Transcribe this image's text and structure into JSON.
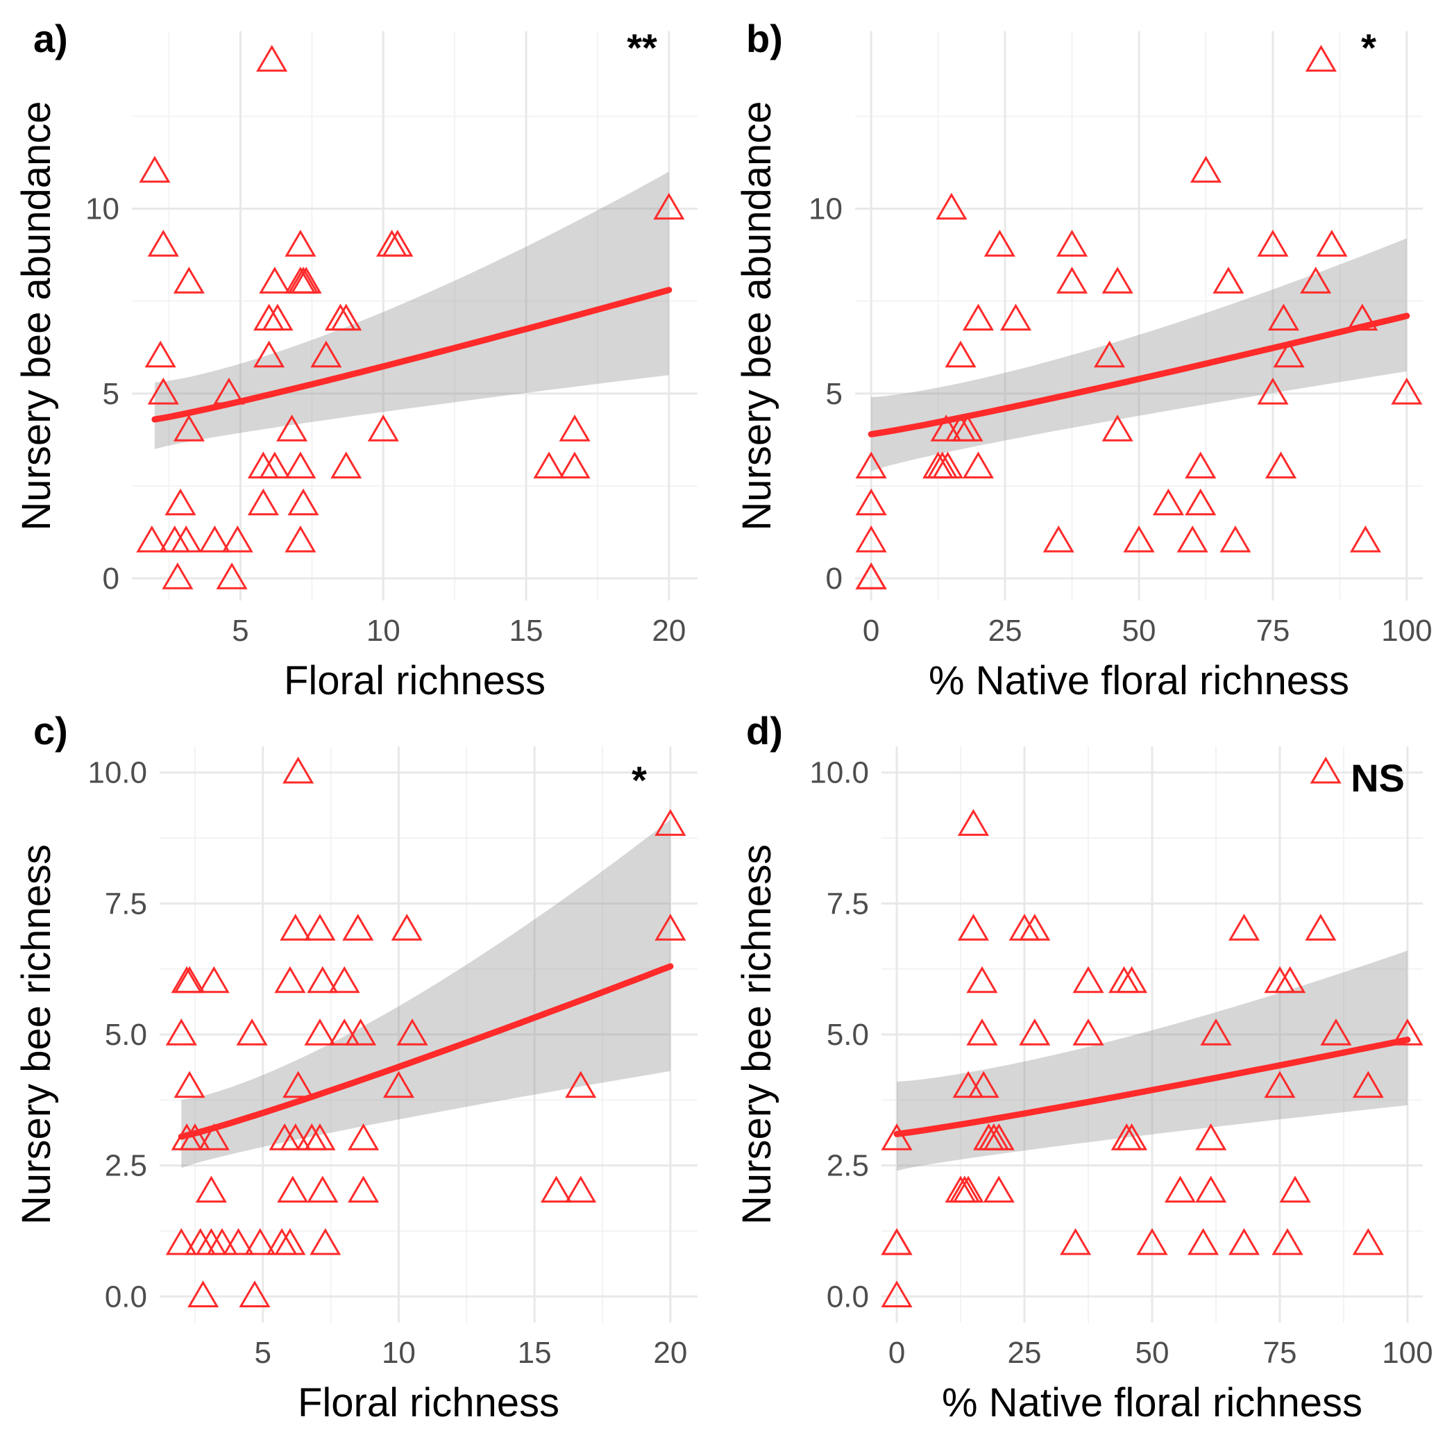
{
  "colors": {
    "points": "#ff2a2a",
    "fit": "#ff2a2a",
    "ribbon": "#999999",
    "grid": "#e8e8e8"
  },
  "chart_data": [
    {
      "panel": "a)",
      "type": "scatter",
      "significance": "**",
      "xlabel": "Floral richness",
      "ylabel": "Nursery bee abundance",
      "xlim": [
        1.2,
        21
      ],
      "ylim": [
        -0.6,
        14.8
      ],
      "xticks": [
        5,
        10,
        15,
        20
      ],
      "xtick_labels": [
        "5",
        "10",
        "15",
        "20"
      ],
      "yticks": [
        0,
        5,
        10
      ],
      "ytick_labels": [
        "0",
        "5",
        "10"
      ],
      "points": [
        [
          2,
          11
        ],
        [
          2.3,
          9
        ],
        [
          2.2,
          6
        ],
        [
          2.3,
          5
        ],
        [
          3.2,
          8
        ],
        [
          3.2,
          4
        ],
        [
          2.9,
          2
        ],
        [
          1.9,
          1
        ],
        [
          2.7,
          1
        ],
        [
          3.1,
          1
        ],
        [
          4.1,
          1
        ],
        [
          4.9,
          1
        ],
        [
          2.8,
          0
        ],
        [
          4.7,
          0
        ],
        [
          4.6,
          5
        ],
        [
          6.1,
          14
        ],
        [
          6.2,
          8
        ],
        [
          6,
          7
        ],
        [
          6.3,
          7
        ],
        [
          6,
          6
        ],
        [
          5.8,
          3
        ],
        [
          6.2,
          3
        ],
        [
          5.8,
          2
        ],
        [
          6.8,
          4
        ],
        [
          7.1,
          9
        ],
        [
          7.1,
          8
        ],
        [
          7.3,
          8
        ],
        [
          7.2,
          8
        ],
        [
          7.1,
          3
        ],
        [
          7.2,
          2
        ],
        [
          7.1,
          1
        ],
        [
          8,
          6
        ],
        [
          8.5,
          7
        ],
        [
          8.7,
          7
        ],
        [
          8.7,
          3
        ],
        [
          10,
          4
        ],
        [
          10.3,
          9
        ],
        [
          10.5,
          9
        ],
        [
          15.8,
          3
        ],
        [
          16.7,
          4
        ],
        [
          16.7,
          3
        ],
        [
          20,
          10
        ]
      ],
      "fit": {
        "x": [
          2,
          20
        ],
        "y_start": 4.3,
        "y_end": 7.8,
        "lower_start": 3.5,
        "lower_end": 5.5,
        "upper_start": 5.3,
        "upper_end": 11
      }
    },
    {
      "panel": "b)",
      "type": "scatter",
      "significance": "*",
      "xlabel": "% Native floral richness",
      "ylabel": "Nursery bee abundance",
      "xlim": [
        -3,
        103
      ],
      "ylim": [
        -0.6,
        14.8
      ],
      "xticks": [
        0,
        25,
        50,
        75,
        100
      ],
      "xtick_labels": [
        "0",
        "25",
        "50",
        "75",
        "100"
      ],
      "yticks": [
        0,
        5,
        10
      ],
      "ytick_labels": [
        "0",
        "5",
        "10"
      ],
      "points": [
        [
          0,
          3
        ],
        [
          0,
          2
        ],
        [
          0,
          1
        ],
        [
          0,
          0
        ],
        [
          0,
          0
        ],
        [
          12.5,
          3
        ],
        [
          13.3,
          3
        ],
        [
          14,
          4
        ],
        [
          14.3,
          3
        ],
        [
          15,
          10
        ],
        [
          16.7,
          6
        ],
        [
          16.7,
          4
        ],
        [
          18,
          4
        ],
        [
          20,
          3
        ],
        [
          20,
          7
        ],
        [
          24,
          9
        ],
        [
          27,
          7
        ],
        [
          35,
          1
        ],
        [
          37.5,
          9
        ],
        [
          37.5,
          8
        ],
        [
          44.5,
          6
        ],
        [
          46,
          8
        ],
        [
          46,
          4
        ],
        [
          50,
          1
        ],
        [
          55.5,
          2
        ],
        [
          60,
          1
        ],
        [
          61.5,
          2
        ],
        [
          61.5,
          3
        ],
        [
          62.5,
          11
        ],
        [
          66.7,
          8
        ],
        [
          68,
          1
        ],
        [
          75,
          9
        ],
        [
          75,
          5
        ],
        [
          76.5,
          3
        ],
        [
          77,
          7
        ],
        [
          78,
          6
        ],
        [
          83,
          8
        ],
        [
          84,
          14
        ],
        [
          86,
          9
        ],
        [
          91.7,
          7
        ],
        [
          92.3,
          1
        ],
        [
          100,
          5
        ]
      ],
      "fit": {
        "x": [
          0,
          100
        ],
        "y_start": 3.9,
        "y_end": 7.1,
        "lower_start": 2.9,
        "lower_end": 5.6,
        "upper_start": 4.9,
        "upper_end": 9.2
      }
    },
    {
      "panel": "c)",
      "type": "scatter",
      "significance": "*",
      "xlabel": "Floral richness",
      "ylabel": "Nursery bee richness",
      "xlim": [
        1.2,
        21
      ],
      "ylim": [
        -0.5,
        10.5
      ],
      "xticks": [
        5,
        10,
        15,
        20
      ],
      "xtick_labels": [
        "5",
        "10",
        "15",
        "20"
      ],
      "yticks": [
        0,
        2.5,
        5,
        7.5,
        10
      ],
      "ytick_labels": [
        "0.0",
        "2.5",
        "5.0",
        "7.5",
        "10.0"
      ],
      "points": [
        [
          2,
          5
        ],
        [
          2.2,
          6
        ],
        [
          2.3,
          6
        ],
        [
          2.3,
          4
        ],
        [
          2.2,
          3
        ],
        [
          2.5,
          3
        ],
        [
          3.2,
          3
        ],
        [
          3.2,
          6
        ],
        [
          3.1,
          2
        ],
        [
          2,
          1
        ],
        [
          2.7,
          1
        ],
        [
          3.1,
          1
        ],
        [
          3.5,
          1
        ],
        [
          4.1,
          1
        ],
        [
          4.9,
          1
        ],
        [
          2.8,
          0
        ],
        [
          4.7,
          0
        ],
        [
          4.6,
          5
        ],
        [
          6.3,
          10
        ],
        [
          6.2,
          7
        ],
        [
          6,
          6
        ],
        [
          6.3,
          4
        ],
        [
          5.8,
          3
        ],
        [
          6.2,
          3
        ],
        [
          6.1,
          2
        ],
        [
          5.7,
          1
        ],
        [
          6,
          1
        ],
        [
          6.8,
          3
        ],
        [
          7.1,
          7
        ],
        [
          7.2,
          6
        ],
        [
          7.1,
          5
        ],
        [
          7.1,
          3
        ],
        [
          7.2,
          2
        ],
        [
          7.3,
          1
        ],
        [
          8,
          6
        ],
        [
          8,
          5
        ],
        [
          8.5,
          7
        ],
        [
          8.6,
          5
        ],
        [
          8.7,
          3
        ],
        [
          8.7,
          2
        ],
        [
          10,
          4
        ],
        [
          10.3,
          7
        ],
        [
          10.5,
          5
        ],
        [
          15.8,
          2
        ],
        [
          16.7,
          2
        ],
        [
          16.7,
          4
        ],
        [
          20,
          9
        ],
        [
          20,
          7
        ]
      ],
      "fit": {
        "x": [
          2,
          20
        ],
        "y_start": 3.05,
        "y_end": 6.3,
        "lower_start": 2.45,
        "lower_end": 4.3,
        "upper_start": 3.75,
        "upper_end": 9.1
      }
    },
    {
      "panel": "d)",
      "type": "scatter",
      "significance": "NS",
      "xlabel": "% Native floral richness",
      "ylabel": "Nursery bee richness",
      "xlim": [
        -3,
        103
      ],
      "ylim": [
        -0.5,
        10.5
      ],
      "xticks": [
        0,
        25,
        50,
        75,
        100
      ],
      "xtick_labels": [
        "0",
        "25",
        "50",
        "75",
        "100"
      ],
      "yticks": [
        0,
        2.5,
        5,
        7.5,
        10
      ],
      "ytick_labels": [
        "0.0",
        "2.5",
        "5.0",
        "7.5",
        "10.0"
      ],
      "points": [
        [
          0,
          3
        ],
        [
          0,
          1
        ],
        [
          0,
          1
        ],
        [
          0,
          0
        ],
        [
          12.5,
          2
        ],
        [
          13.3,
          2
        ],
        [
          14,
          2
        ],
        [
          14,
          4
        ],
        [
          15,
          9
        ],
        [
          15,
          7
        ],
        [
          16.7,
          6
        ],
        [
          16.7,
          5
        ],
        [
          17,
          4
        ],
        [
          18,
          3
        ],
        [
          19,
          3
        ],
        [
          20,
          2
        ],
        [
          20,
          3
        ],
        [
          25,
          7
        ],
        [
          27,
          7
        ],
        [
          27,
          5
        ],
        [
          35,
          1
        ],
        [
          37.5,
          6
        ],
        [
          37.5,
          5
        ],
        [
          44.5,
          6
        ],
        [
          45,
          3
        ],
        [
          46,
          3
        ],
        [
          46,
          6
        ],
        [
          50,
          1
        ],
        [
          55.5,
          2
        ],
        [
          60,
          1
        ],
        [
          61.5,
          2
        ],
        [
          61.5,
          3
        ],
        [
          62.5,
          5
        ],
        [
          68,
          7
        ],
        [
          68,
          1
        ],
        [
          75,
          6
        ],
        [
          75,
          4
        ],
        [
          76.5,
          1
        ],
        [
          77,
          6
        ],
        [
          78,
          2
        ],
        [
          83,
          7
        ],
        [
          84,
          10
        ],
        [
          86,
          5
        ],
        [
          92.3,
          4
        ],
        [
          92.3,
          1
        ],
        [
          100,
          5
        ]
      ],
      "fit": {
        "x": [
          0,
          100
        ],
        "y_start": 3.1,
        "y_end": 4.9,
        "lower_start": 2.4,
        "lower_end": 3.65,
        "upper_start": 4.1,
        "upper_end": 6.6
      }
    }
  ]
}
